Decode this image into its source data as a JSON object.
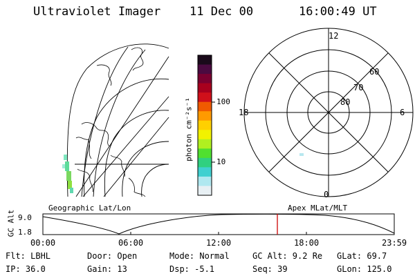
{
  "header": {
    "instrument": "Ultraviolet Imager",
    "date": "11 Dec 00",
    "time": "16:00:49 UT"
  },
  "colorbar": {
    "label": "photon cm⁻²s⁻¹",
    "ticks": [
      "100",
      "10"
    ],
    "colors": [
      "#1a0a1a",
      "#4b0a40",
      "#7a0030",
      "#a8001e",
      "#d0101a",
      "#f05a00",
      "#ff9a00",
      "#ffd000",
      "#f2f200",
      "#b0f020",
      "#50e030",
      "#30d080",
      "#40d0d0",
      "#b0e8f0",
      "#e8f0f4"
    ]
  },
  "polar_plot": {
    "mlt_labels": {
      "top": "12",
      "left": "18",
      "right": "6",
      "bottom": "0"
    },
    "lat_labels": [
      "60",
      "70",
      "80"
    ]
  },
  "panel_titles": {
    "left": "Geographic Lat/Lon",
    "right": "Apex MLat/MLT"
  },
  "timeline": {
    "y_axis_label": "GC Alt",
    "y_ticks": [
      "9.0",
      "1.8"
    ],
    "x_ticks": [
      "00:00",
      "06:00",
      "12:00",
      "18:00",
      "23:59"
    ],
    "marker_color": "#cc0000",
    "marker_time": "16:00"
  },
  "footer": {
    "row1": {
      "filter": "Flt: LBHL",
      "door": "Door: Open",
      "mode": "Mode: Normal",
      "gc_alt": "GC Alt: 9.2 Re",
      "glat": "GLat:  69.7"
    },
    "row2": {
      "ip": "IP: 36.0",
      "gain": "Gain: 13",
      "dsp": "Dsp:   -5.1",
      "seq": "Seq: 39",
      "glon": "GLon: 125.0"
    }
  }
}
